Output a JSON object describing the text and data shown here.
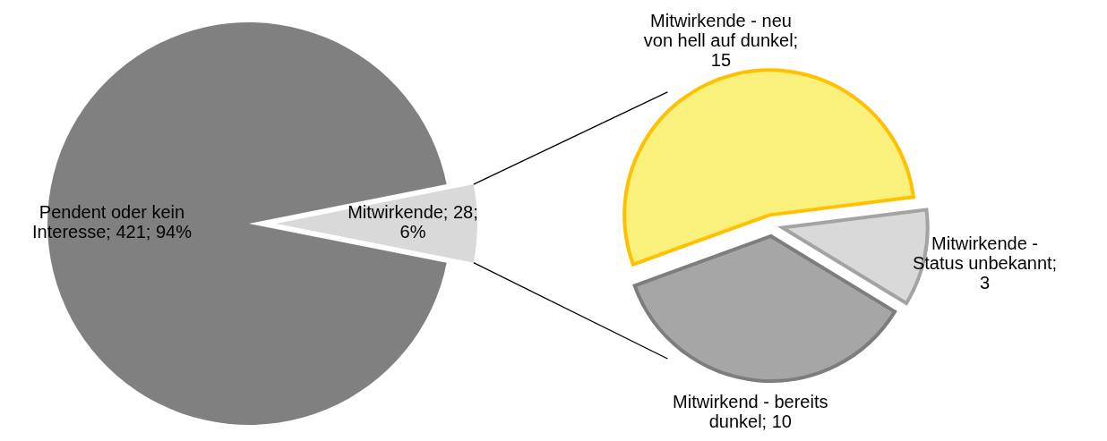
{
  "chart_data": [
    {
      "type": "pie",
      "categories": [
        "Pendent oder kein Interesse",
        "Mitwirkende"
      ],
      "values": [
        421,
        28
      ],
      "colors": [
        "#808080",
        "#d9d9d9"
      ],
      "value_labels": [
        "; 421; 94%",
        "; 28; 6%"
      ]
    },
    {
      "type": "pie",
      "categories": [
        "Mitwirkende - neu von hell auf dunkel",
        "Mitwirkende - Status unbekannt",
        "Mitwirkend - bereits dunkel"
      ],
      "values": [
        15,
        3,
        10
      ],
      "colors": [
        "#f9f17c",
        "#d9d9d9",
        "#a6a6a6"
      ],
      "value_labels": [
        "; 15",
        "; 3",
        "; 10"
      ]
    }
  ]
}
